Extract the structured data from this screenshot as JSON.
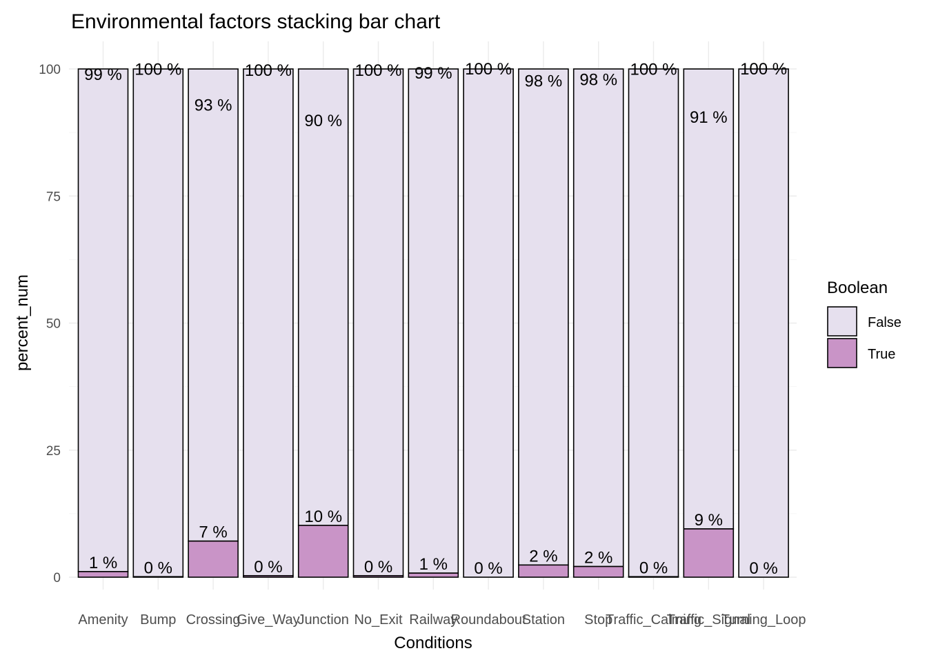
{
  "chart_data": {
    "type": "bar",
    "stacked": true,
    "title": "Environmental factors stacking bar chart",
    "xlabel": "Conditions",
    "ylabel": "percent_num",
    "ylim": [
      0,
      100
    ],
    "yticks": [
      0,
      25,
      50,
      75,
      100
    ],
    "grid": true,
    "legend": {
      "title": "Boolean",
      "position": "right"
    },
    "categories": [
      "Amenity",
      "Bump",
      "Crossing",
      "Give_Way",
      "Junction",
      "No_Exit",
      "Railway",
      "Roundabout",
      "Station",
      "Stop",
      "Traffic_Calming",
      "Traffic_Signal",
      "Turning_Loop"
    ],
    "series": [
      {
        "name": "False",
        "color": "#e6e0ee",
        "values": [
          98.9,
          99.9,
          92.9,
          99.7,
          89.8,
          99.7,
          99.2,
          100,
          97.6,
          97.9,
          99.9,
          90.5,
          100
        ],
        "labels": [
          "99 %",
          "100 %",
          "93 %",
          "100 %",
          "90 %",
          "100 %",
          "99 %",
          "100 %",
          "98 %",
          "98 %",
          "100 %",
          "91 %",
          "100 %"
        ]
      },
      {
        "name": "True",
        "color": "#c994c7",
        "values": [
          1.1,
          0.1,
          7.1,
          0.3,
          10.2,
          0.3,
          0.8,
          0,
          2.4,
          2.1,
          0.1,
          9.5,
          0
        ],
        "labels": [
          "1 %",
          "0 %",
          "7 %",
          "0 %",
          "10 %",
          "0 %",
          "1 %",
          "0 %",
          "2 %",
          "2 %",
          "0 %",
          "9 %",
          "0 %"
        ]
      }
    ]
  }
}
